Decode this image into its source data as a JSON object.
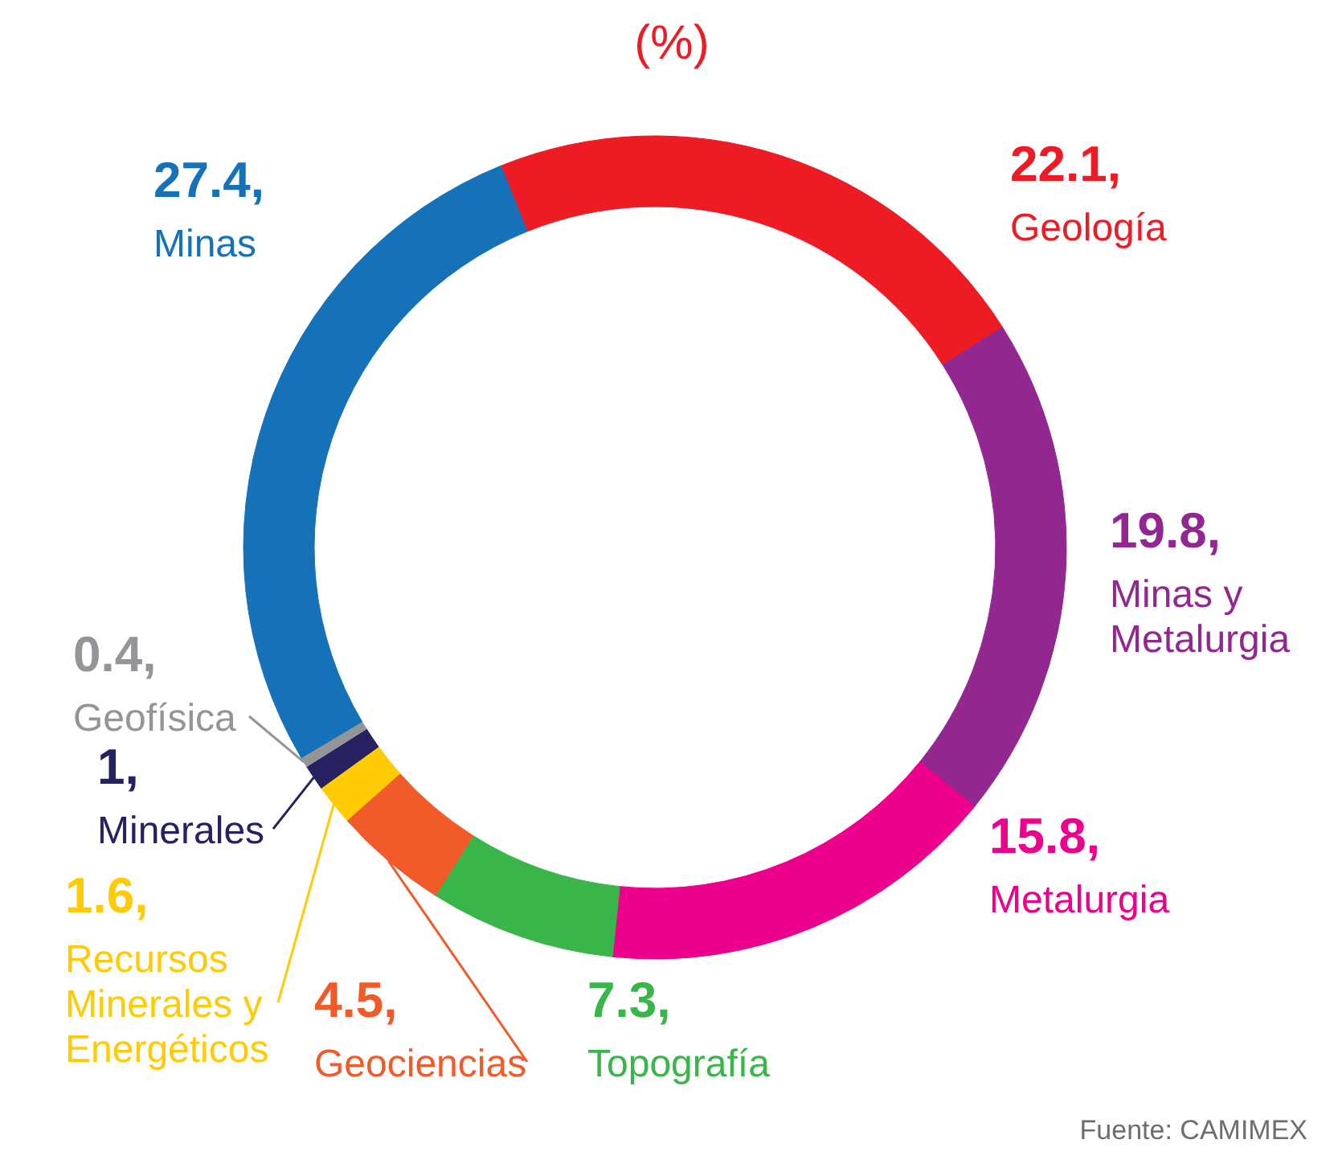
{
  "chart_data": {
    "type": "donut",
    "title": "(%)",
    "categories": [
      "Geología",
      "Minas y Metalurgia",
      "Metalurgia",
      "Topografía",
      "Geociencias",
      "Recursos Minerales y Energéticos",
      "Minerales",
      "Geofísica",
      "Minas"
    ],
    "values": [
      22.1,
      19.8,
      15.8,
      7.3,
      4.5,
      1.6,
      1,
      0.4,
      27.4
    ],
    "colors": [
      "#ed1c24",
      "#92278f",
      "#ec008c",
      "#39b54a",
      "#f15a29",
      "#ffcb05",
      "#262262",
      "#939598",
      "#1572b9"
    ],
    "data_labels": true,
    "value_labels": [
      "22.1,",
      "19.8,",
      "15.8,",
      "7.3,",
      "4.5,",
      "1.6,",
      "1,",
      "0.4,",
      "27.4,"
    ],
    "annotations": [
      "Fuente: CAMIMEX"
    ]
  }
}
